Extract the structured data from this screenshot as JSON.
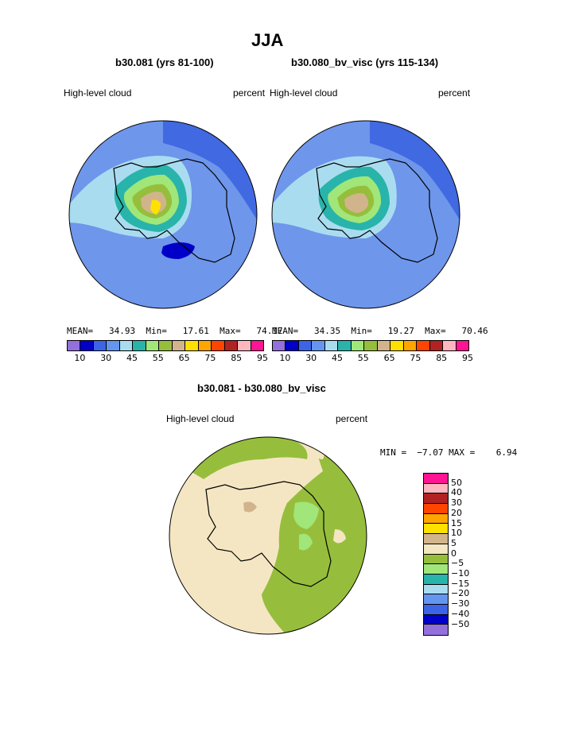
{
  "page_title": "JJA",
  "panels": {
    "left": {
      "title": "b30.081 (yrs 81-100)",
      "variable": "High-level cloud",
      "units": "percent",
      "stats": {
        "mean_label": "MEAN=",
        "mean": "34.93",
        "min_label": "Min=",
        "min": "17.61",
        "max_label": "Max=",
        "max": "74.17"
      }
    },
    "right": {
      "title": "b30.080_bv_visc (yrs 115-134)",
      "variable": "High-level cloud",
      "units": "percent",
      "stats": {
        "mean_label": "MEAN=",
        "mean": "34.35",
        "min_label": "Min=",
        "min": "19.27",
        "max_label": "Max=",
        "max": "70.46"
      }
    },
    "diff": {
      "title": "b30.081 - b30.080_bv_visc",
      "variable": "High-level cloud",
      "units": "percent",
      "minmax": "MIN =  −7.07 MAX =    6.94"
    }
  },
  "colorbar_abs": {
    "colors": [
      "#9370db",
      "#0000c8",
      "#3c64e6",
      "#6496f0",
      "#aadcf0",
      "#28b4aa",
      "#a0e678",
      "#96be3c",
      "#d2b48c",
      "#ffe100",
      "#ffa500",
      "#ff4500",
      "#b22222",
      "#ffb6c1",
      "#ff1493"
    ],
    "labels": [
      "10",
      "30",
      "45",
      "55",
      "65",
      "75",
      "85",
      "95"
    ]
  },
  "colorbar_diff": {
    "colors": [
      "#ff1493",
      "#ffb6c1",
      "#b22222",
      "#ff4500",
      "#ffa500",
      "#ffe100",
      "#d2b48c",
      "#f5e6c3",
      "#96be3c",
      "#a0e678",
      "#28b4aa",
      "#aadcf0",
      "#6496f0",
      "#3c64e6",
      "#0000c8",
      "#9370db"
    ],
    "labels": [
      "50",
      "40",
      "30",
      "20",
      "15",
      "10",
      "5",
      "0",
      "−5",
      "−10",
      "−15",
      "−20",
      "−30",
      "−40",
      "−50"
    ]
  }
}
